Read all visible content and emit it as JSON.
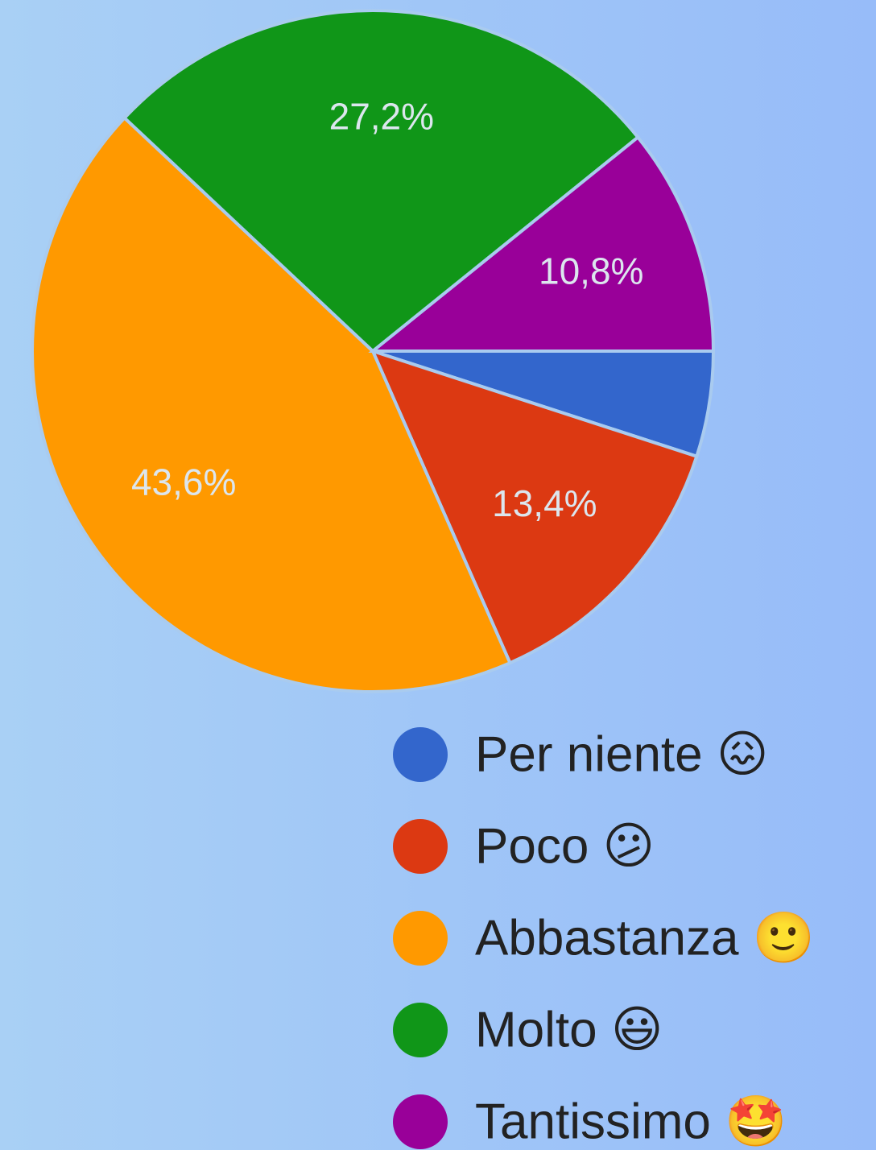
{
  "chart_data": {
    "type": "pie",
    "categories": [
      "Per niente 😖",
      "Poco 😕",
      "Abbastanza 🙂",
      "Molto 😃",
      "Tantissimo 🤩"
    ],
    "values": [
      5.0,
      13.4,
      43.6,
      27.2,
      10.8
    ],
    "value_labels": [
      null,
      "13,4%",
      "43,6%",
      "27,2%",
      "10,8%"
    ],
    "colors": [
      "#3366cc",
      "#dc3912",
      "#ff9900",
      "#109618",
      "#990099"
    ]
  }
}
